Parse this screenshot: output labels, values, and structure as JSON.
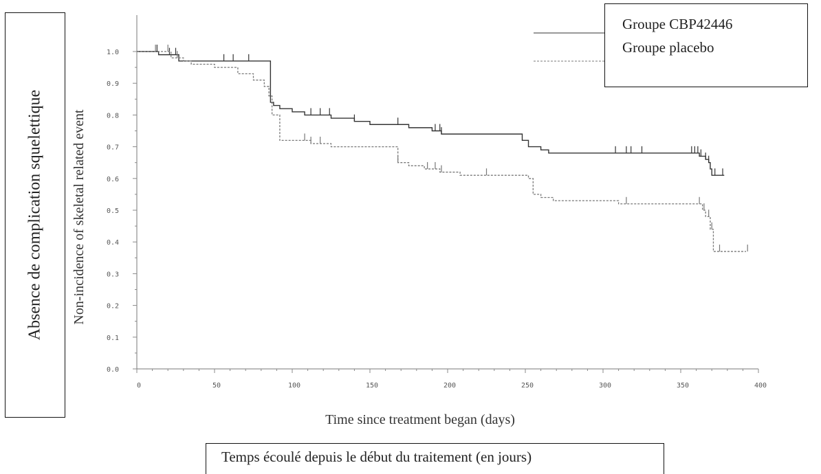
{
  "chart_data": {
    "type": "line",
    "step": true,
    "xlabel": "Time since treatment began (days)",
    "ylabel": "Non-incidence of skeletal related event",
    "xlabel_fr": "Temps écoulé depuis le début du traitement (en jours)",
    "ylabel_fr": "Absence de complication squelettique",
    "xlim": [
      0,
      400
    ],
    "ylim": [
      0,
      1.0
    ],
    "xticks": [
      0,
      50,
      100,
      150,
      200,
      250,
      300,
      350,
      400
    ],
    "yticks": [
      0.0,
      0.1,
      0.2,
      0.3,
      0.4,
      0.5,
      0.6,
      0.7,
      0.8,
      0.9,
      1.0
    ],
    "ytick_labels": [
      "0.0",
      "0.1",
      "0.2",
      "0.3",
      "0.4",
      "0.5",
      "0.6",
      "0.7",
      "0.8",
      "0.9",
      "1.0"
    ],
    "legend_position": "top-right",
    "series": [
      {
        "name": "Groupe CBP42446",
        "color": "#333333",
        "dash": "solid",
        "x": [
          0,
          14,
          27,
          86,
          88,
          92,
          100,
          108,
          125,
          140,
          150,
          165,
          175,
          190,
          196,
          210,
          248,
          252,
          260,
          265,
          362,
          366,
          368,
          369,
          370,
          378
        ],
        "y": [
          1.0,
          0.99,
          0.97,
          0.84,
          0.83,
          0.82,
          0.81,
          0.8,
          0.79,
          0.78,
          0.77,
          0.77,
          0.76,
          0.75,
          0.74,
          0.74,
          0.72,
          0.7,
          0.69,
          0.68,
          0.67,
          0.66,
          0.65,
          0.63,
          0.61,
          0.61
        ],
        "censor_x": [
          13,
          21,
          25,
          56,
          62,
          72,
          112,
          118,
          124,
          140,
          168,
          192,
          195,
          196,
          308,
          315,
          318,
          325,
          357,
          359,
          361,
          363,
          366,
          368,
          372,
          377
        ]
      },
      {
        "name": "Groupe placebo",
        "color": "#777777",
        "dash": "dashed",
        "x": [
          0,
          22,
          30,
          35,
          50,
          65,
          75,
          82,
          85,
          87,
          92,
          98,
          112,
          125,
          145,
          165,
          168,
          175,
          185,
          195,
          208,
          230,
          252,
          255,
          260,
          268,
          290,
          310,
          360,
          364,
          366,
          369,
          371,
          392
        ],
        "y": [
          1.0,
          0.98,
          0.97,
          0.96,
          0.95,
          0.93,
          0.91,
          0.89,
          0.86,
          0.8,
          0.72,
          0.72,
          0.71,
          0.7,
          0.7,
          0.7,
          0.65,
          0.64,
          0.63,
          0.62,
          0.61,
          0.61,
          0.6,
          0.55,
          0.54,
          0.53,
          0.53,
          0.52,
          0.52,
          0.5,
          0.48,
          0.44,
          0.37,
          0.37
        ],
        "censor_x": [
          12,
          20,
          26,
          118,
          108,
          112,
          168,
          187,
          192,
          196,
          225,
          315,
          362,
          365,
          368,
          370,
          375,
          393
        ]
      }
    ]
  }
}
